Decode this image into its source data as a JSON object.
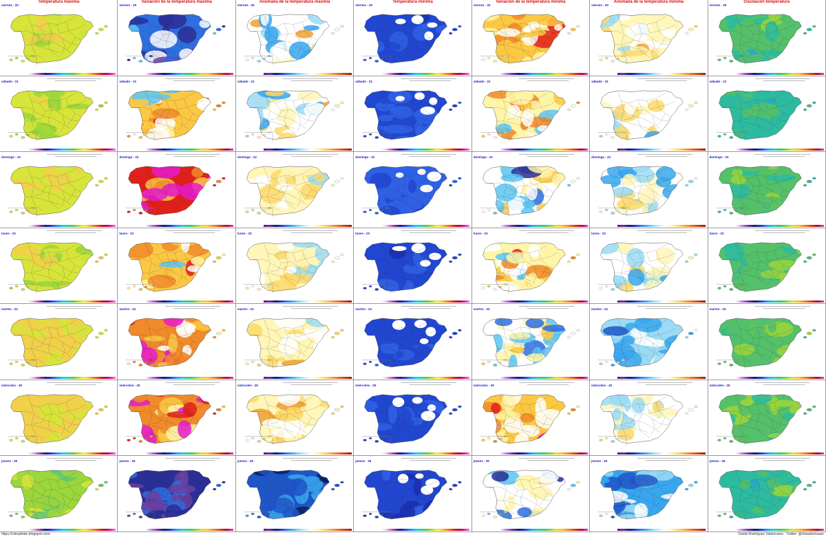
{
  "columns": [
    {
      "title": "Temperatura máxima",
      "kind": "tmax"
    },
    {
      "title": "Variación de la temperatura máxima",
      "kind": "var_tmax"
    },
    {
      "title": "Anomalía de la temperatura máxima",
      "kind": "anom_tmax"
    },
    {
      "title": "Temperatura mínima",
      "kind": "tmin"
    },
    {
      "title": "Variación de la temperatura mínima",
      "kind": "var_tmin"
    },
    {
      "title": "Anomalía de la temperatura mínima",
      "kind": "anom_tmin"
    },
    {
      "title": "Oscilación temperatura",
      "kind": "osc"
    }
  ],
  "days": [
    "viernes - 20",
    "sábado - 21",
    "domingo - 22",
    "lunes - 23",
    "martes - 24",
    "miércoles - 25",
    "jueves - 26"
  ],
  "palettes": {
    "tmax": [
      "#37c9e6",
      "#3cc8a8",
      "#62c873",
      "#9ad63c",
      "#d7e43a",
      "#f1d04a"
    ],
    "tmin": [
      "#0d1a7a",
      "#1a2fb0",
      "#2146d0",
      "#2f62e6",
      "#ffffff"
    ],
    "anomaly": [
      "#0c1e60",
      "#1e56c8",
      "#38a6ee",
      "#9bdbf5",
      "#ffffff",
      "#fff6b8",
      "#fcd96a",
      "#f0a030",
      "#d86a18"
    ],
    "variation": [
      "#6b3fa0",
      "#2a2f96",
      "#2e6fe0",
      "#5cc6f2",
      "#ffffff",
      "#fff5a8",
      "#fbc843",
      "#f08a2a",
      "#e0201a",
      "#e81ad0"
    ],
    "osc": [
      "#0b1f6a",
      "#1d47b0",
      "#2aa7c8",
      "#2dbba0",
      "#55c06a",
      "#9bd53a",
      "#d3e23a"
    ]
  },
  "cell_params": [
    [
      {
        "b": 0.85,
        "s": 0.1
      },
      {
        "b": -0.55,
        "s": 0.2
      },
      {
        "b": 0.1,
        "s": 0.35
      },
      {
        "b": 0.3,
        "s": 0.1
      },
      {
        "b": 0.1,
        "s": 0.25
      },
      {
        "b": 0.3,
        "s": 0.3
      },
      {
        "b": 0.4,
        "s": 0.15
      }
    ],
    [
      {
        "b": 0.75,
        "s": 0.1
      },
      {
        "b": 0.1,
        "s": 0.25
      },
      {
        "b": 0.05,
        "s": 0.35
      },
      {
        "b": 0.3,
        "s": 0.1
      },
      {
        "b": 0.05,
        "s": 0.2
      },
      {
        "b": 0.1,
        "s": 0.25
      },
      {
        "b": 0.35,
        "s": 0.15
      }
    ],
    [
      {
        "b": 0.95,
        "s": 0.1
      },
      {
        "b": 0.55,
        "s": 0.3
      },
      {
        "b": 0.15,
        "s": 0.25
      },
      {
        "b": 0.5,
        "s": 0.1
      },
      {
        "b": -0.25,
        "s": 0.3
      },
      {
        "b": -0.05,
        "s": 0.3
      },
      {
        "b": 0.5,
        "s": 0.15
      }
    ],
    [
      {
        "b": 0.85,
        "s": 0.1
      },
      {
        "b": 0.1,
        "s": 0.3
      },
      {
        "b": 0.15,
        "s": 0.25
      },
      {
        "b": 0.25,
        "s": 0.1
      },
      {
        "b": 0.05,
        "s": 0.3
      },
      {
        "b": 0.0,
        "s": 0.25
      },
      {
        "b": 0.5,
        "s": 0.15
      }
    ],
    [
      {
        "b": 1.0,
        "s": 0.1
      },
      {
        "b": 0.3,
        "s": 0.35
      },
      {
        "b": 0.3,
        "s": 0.2
      },
      {
        "b": 0.3,
        "s": 0.1
      },
      {
        "b": -0.15,
        "s": 0.3
      },
      {
        "b": -0.2,
        "s": 0.25
      },
      {
        "b": 0.6,
        "s": 0.15
      }
    ],
    [
      {
        "b": 1.05,
        "s": 0.1
      },
      {
        "b": 0.4,
        "s": 0.3
      },
      {
        "b": 0.3,
        "s": 0.2
      },
      {
        "b": 0.3,
        "s": 0.1
      },
      {
        "b": 0.2,
        "s": 0.3
      },
      {
        "b": 0.1,
        "s": 0.2
      },
      {
        "b": 0.6,
        "s": 0.15
      }
    ],
    [
      {
        "b": 0.4,
        "s": 0.1
      },
      {
        "b": -0.9,
        "s": 0.1
      },
      {
        "b": -0.75,
        "s": 0.15
      },
      {
        "b": 0.15,
        "s": 0.1
      },
      {
        "b": -0.2,
        "s": 0.3
      },
      {
        "b": -0.4,
        "s": 0.2
      },
      {
        "b": 0.35,
        "s": 0.15
      }
    ]
  ],
  "footer": {
    "left": "https://climalimite.blogspot.com/",
    "right": "Daniel Rodríguez Valderrama · Twitter: @cliwadenhauer"
  }
}
